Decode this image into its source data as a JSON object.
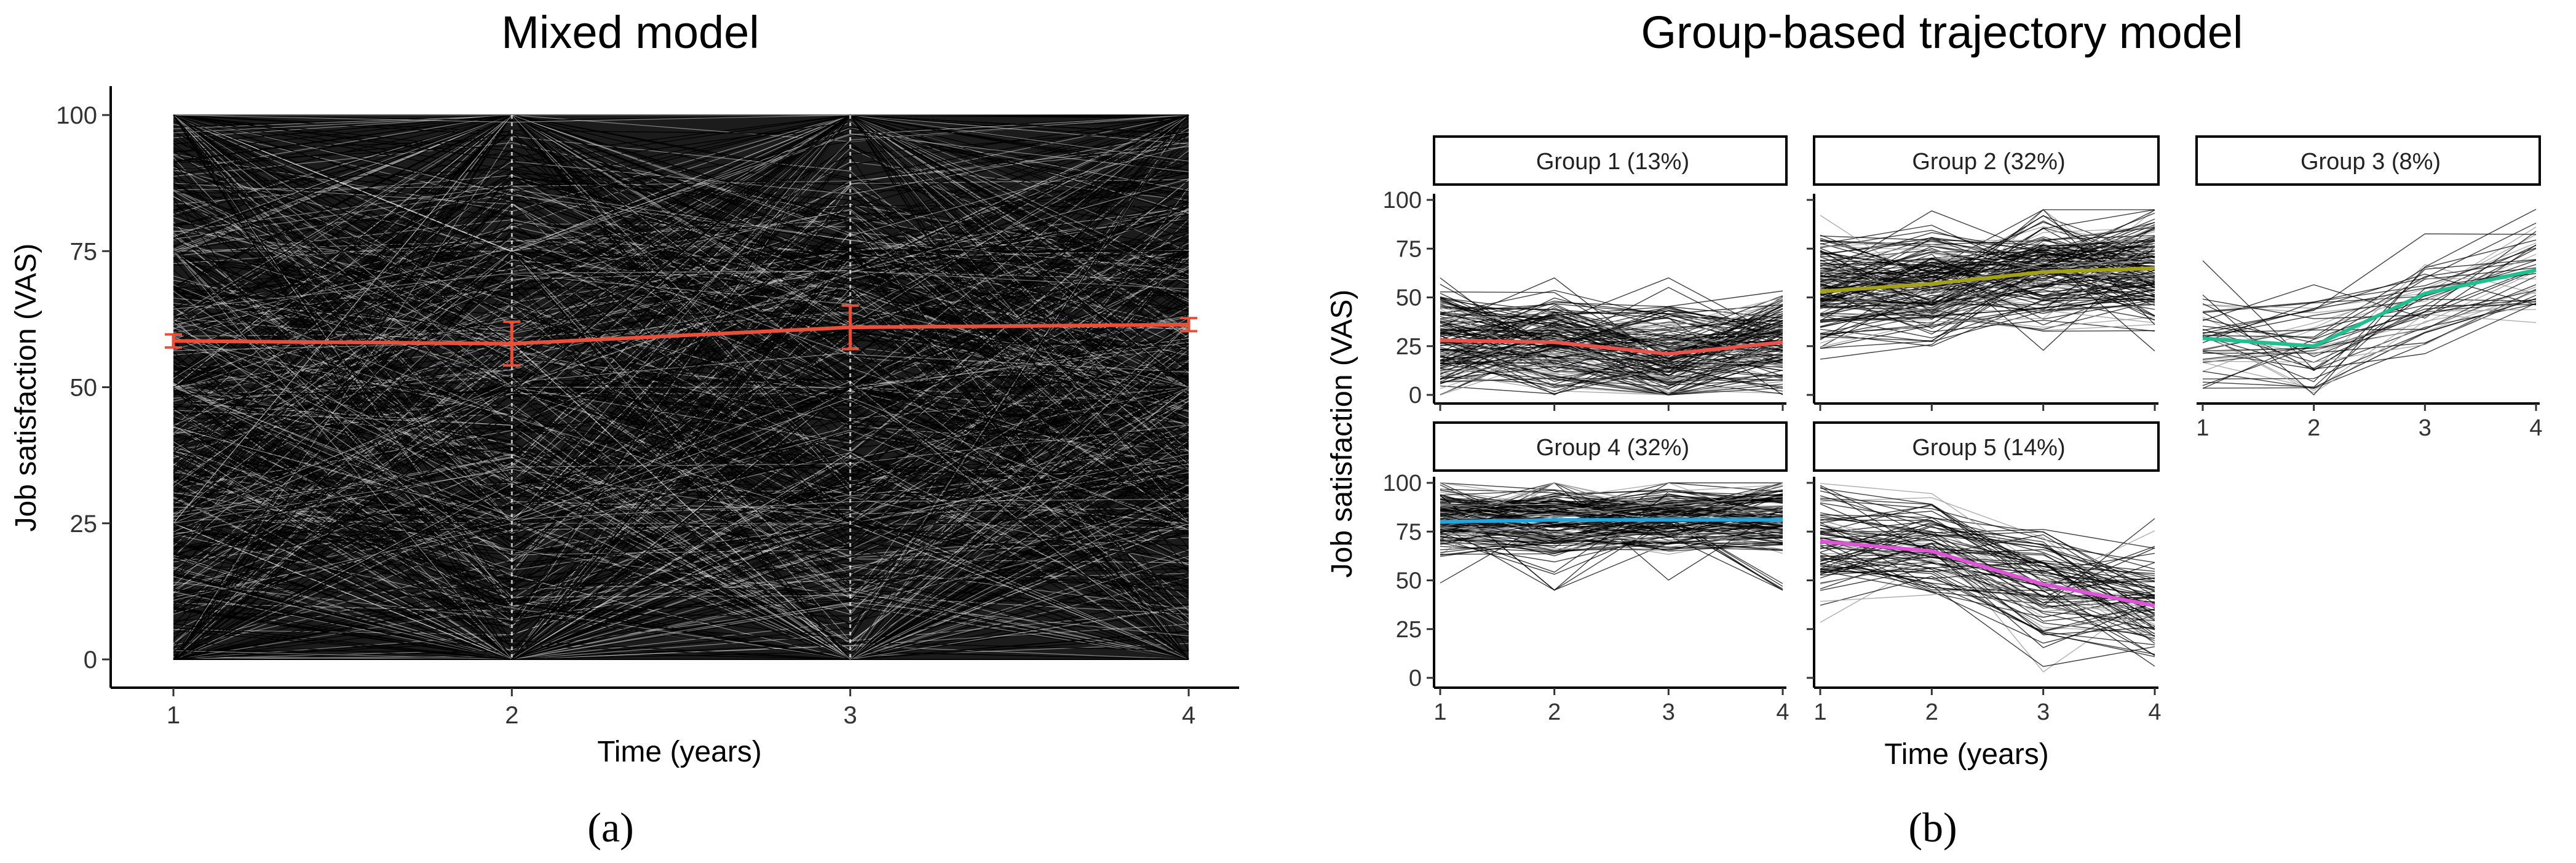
{
  "panels": {
    "a": {
      "title": "Mixed model",
      "panel_label": "(a)",
      "ylabel": "Job satisfaction (VAS)",
      "xlabel": "Time (years)"
    },
    "b": {
      "title": "Group-based trajectory model",
      "panel_label": "(b)",
      "ylabel": "Job satisfaction (VAS)",
      "xlabel": "Time (years)"
    }
  },
  "chart_data": [
    {
      "type": "line",
      "title": "Mixed model",
      "xlabel": "Time (years)",
      "ylabel": "Job satisfaction (VAS)",
      "x": [
        1,
        2,
        3,
        4
      ],
      "xlim": [
        1,
        4
      ],
      "ylim": [
        0,
        100
      ],
      "yticks": [
        0,
        25,
        50,
        75,
        100
      ],
      "xticks": [
        1,
        2,
        3,
        4
      ],
      "individual_trajectories": {
        "color": "#000000",
        "range": [
          0,
          100
        ],
        "description_count": "many"
      },
      "series": [
        {
          "name": "mean trajectory",
          "color": "#e8503a",
          "values": [
            58.5,
            58,
            61,
            61.5
          ],
          "error": [
            1.2,
            4,
            4,
            1.2
          ]
        }
      ]
    },
    {
      "type": "line",
      "title": "Group-based trajectory model",
      "xlabel": "Time (years)",
      "ylabel": "Job satisfaction (VAS)",
      "x": [
        1,
        2,
        3,
        4
      ],
      "ylim": [
        0,
        100
      ],
      "yticks": [
        0,
        25,
        50,
        75,
        100
      ],
      "xticks": [
        1,
        2,
        3,
        4
      ],
      "facets": [
        {
          "label": "Group 1 (13%)",
          "color": "#e8544b",
          "values": [
            28,
            27,
            21,
            27
          ],
          "spread": [
            0,
            60
          ]
        },
        {
          "label": "Group 2 (32%)",
          "color": "#a3a019",
          "values": [
            53,
            57,
            63,
            65
          ],
          "spread": [
            15,
            95
          ]
        },
        {
          "label": "Group 3 (8%)",
          "color": "#1fbf8f",
          "values": [
            29,
            25,
            52,
            64
          ],
          "spread": [
            0,
            100
          ]
        },
        {
          "label": "Group 4 (32%)",
          "color": "#22a6e0",
          "values": [
            80,
            81,
            81,
            81
          ],
          "spread": [
            45,
            100
          ]
        },
        {
          "label": "Group 5 (14%)",
          "color": "#df55d8",
          "values": [
            70,
            65,
            48,
            37
          ],
          "spread": [
            0,
            100
          ]
        }
      ]
    }
  ]
}
